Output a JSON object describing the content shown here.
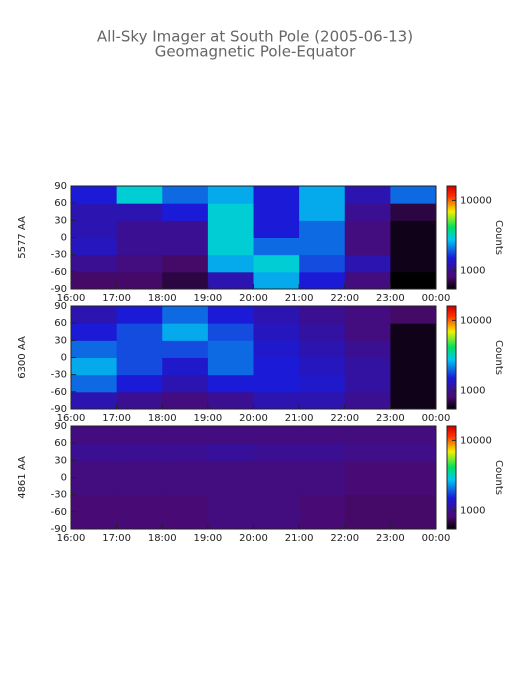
{
  "title": "All-Sky Imager at South Pole (2005-06-13)",
  "subtitle": "Geomagnetic Pole-Equator",
  "chart_data": [
    {
      "type": "heatmap",
      "ylabel": "5577 AA",
      "zlabel": "Counts",
      "xbins": [
        16,
        17,
        18,
        19,
        20,
        21,
        22,
        23,
        24
      ],
      "ybins": [
        -90,
        -60,
        -30,
        0,
        30,
        60,
        90
      ],
      "values": [
        [
          800,
          800,
          700,
          1200,
          2500,
          1500,
          900,
          550
        ],
        [
          1000,
          900,
          800,
          2500,
          3000,
          1800,
          1200,
          600
        ],
        [
          1300,
          1000,
          1000,
          3000,
          2000,
          2000,
          900,
          600
        ],
        [
          1200,
          1000,
          1000,
          3000,
          1500,
          2000,
          900,
          600
        ],
        [
          1200,
          1200,
          1500,
          3000,
          1500,
          2500,
          1000,
          700
        ],
        [
          1500,
          3000,
          2000,
          2500,
          1500,
          2500,
          1200,
          2000
        ]
      ],
      "xlim": [
        16,
        24
      ],
      "ylim": [
        -90,
        90
      ],
      "zlim": [
        550,
        16000
      ],
      "zlog": true,
      "xticks": [
        {
          "value": 16,
          "label": "16:00"
        },
        {
          "value": 17,
          "label": "17:00"
        },
        {
          "value": 18,
          "label": "18:00"
        },
        {
          "value": 19,
          "label": "19:00"
        },
        {
          "value": 20,
          "label": "20:00"
        },
        {
          "value": 21,
          "label": "21:00"
        },
        {
          "value": 22,
          "label": "22:00"
        },
        {
          "value": 23,
          "label": "23:00"
        },
        {
          "value": 24,
          "label": "00:00"
        }
      ],
      "yticks": [
        -90,
        -60,
        -30,
        0,
        30,
        60,
        90
      ],
      "zticks": [
        1000,
        10000
      ]
    },
    {
      "type": "heatmap",
      "ylabel": "6300 AA",
      "zlabel": "Counts",
      "xbins": [
        16,
        17,
        18,
        19,
        20,
        21,
        22,
        23,
        24
      ],
      "ybins": [
        -90,
        -60,
        -30,
        0,
        30,
        60,
        90
      ],
      "values": [
        [
          1200,
          1000,
          900,
          1000,
          1200,
          1200,
          1000,
          600
        ],
        [
          2000,
          1500,
          1200,
          1500,
          1500,
          1400,
          1100,
          600
        ],
        [
          2500,
          1800,
          1400,
          2000,
          1500,
          1300,
          1100,
          600
        ],
        [
          2000,
          1800,
          1800,
          2000,
          1400,
          1200,
          1000,
          600
        ],
        [
          1500,
          1800,
          2500,
          1800,
          1300,
          1100,
          900,
          600
        ],
        [
          1200,
          1500,
          2000,
          1500,
          1200,
          1000,
          900,
          800
        ]
      ],
      "xlim": [
        16,
        24
      ],
      "ylim": [
        -90,
        90
      ],
      "zlim": [
        550,
        16000
      ],
      "zlog": true,
      "xticks": [
        {
          "value": 16,
          "label": "16:00"
        },
        {
          "value": 17,
          "label": "17:00"
        },
        {
          "value": 18,
          "label": "18:00"
        },
        {
          "value": 19,
          "label": "19:00"
        },
        {
          "value": 20,
          "label": "20:00"
        },
        {
          "value": 21,
          "label": "21:00"
        },
        {
          "value": 22,
          "label": "22:00"
        },
        {
          "value": 23,
          "label": "23:00"
        },
        {
          "value": 24,
          "label": "00:00"
        }
      ],
      "yticks": [
        -90,
        -60,
        -30,
        0,
        30,
        60,
        90
      ],
      "zticks": [
        1000,
        10000
      ]
    },
    {
      "type": "heatmap",
      "ylabel": "4861 AA",
      "zlabel": "Counts",
      "xbins": [
        16,
        17,
        18,
        19,
        20,
        21,
        22,
        23,
        24
      ],
      "ybins": [
        -90,
        -60,
        -30,
        0,
        30,
        60,
        90
      ],
      "values": [
        [
          850,
          850,
          850,
          900,
          900,
          850,
          800,
          800
        ],
        [
          850,
          850,
          850,
          900,
          900,
          850,
          800,
          800
        ],
        [
          900,
          900,
          900,
          900,
          900,
          900,
          850,
          850
        ],
        [
          900,
          900,
          900,
          900,
          900,
          900,
          850,
          850
        ],
        [
          1000,
          1000,
          1000,
          1050,
          1000,
          1000,
          950,
          950
        ],
        [
          900,
          900,
          900,
          900,
          900,
          900,
          900,
          900
        ]
      ],
      "xlim": [
        16,
        24
      ],
      "ylim": [
        -90,
        90
      ],
      "zlim": [
        550,
        16000
      ],
      "zlog": true,
      "xticks": [
        {
          "value": 16,
          "label": "16:00"
        },
        {
          "value": 17,
          "label": "17:00"
        },
        {
          "value": 18,
          "label": "18:00"
        },
        {
          "value": 19,
          "label": "19:00"
        },
        {
          "value": 20,
          "label": "20:00"
        },
        {
          "value": 21,
          "label": "21:00"
        },
        {
          "value": 22,
          "label": "22:00"
        },
        {
          "value": 23,
          "label": "23:00"
        },
        {
          "value": 24,
          "label": "00:00"
        }
      ],
      "yticks": [
        -90,
        -60,
        -30,
        0,
        30,
        60,
        90
      ],
      "zticks": [
        1000,
        10000
      ]
    }
  ]
}
